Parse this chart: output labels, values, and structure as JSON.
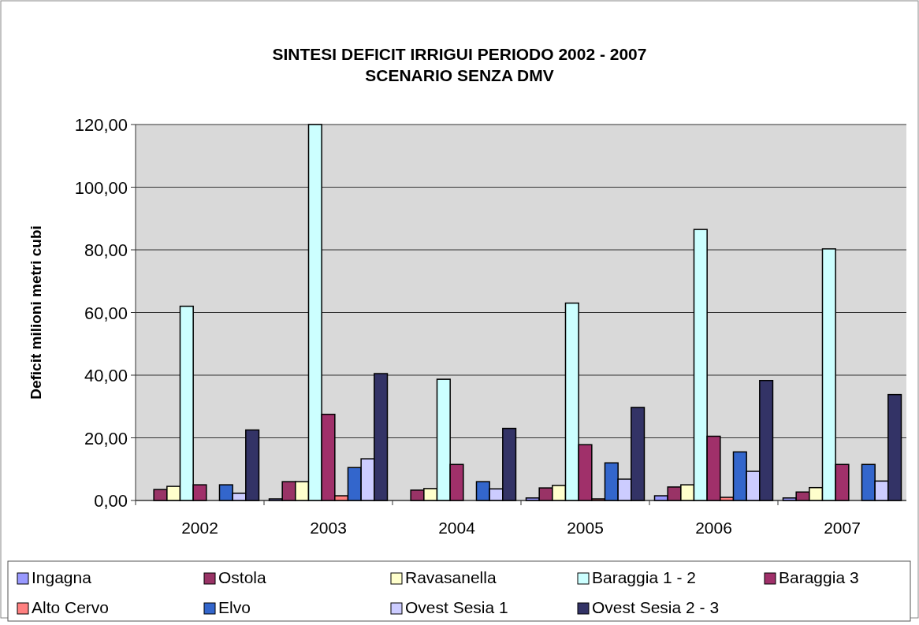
{
  "chart_data": {
    "type": "bar",
    "title": "SINTESI DEFICIT IRRIGUI PERIODO 2002 - 2007",
    "subtitle": "SCENARIO SENZA DMV",
    "ylabel": "Deficit milioni metri cubi",
    "categories": [
      "2002",
      "2003",
      "2004",
      "2005",
      "2006",
      "2007"
    ],
    "series": [
      {
        "name": "Ingagna",
        "color": "#9999ff",
        "values": [
          0,
          0.5,
          0,
          0.8,
          1.5,
          0.8
        ]
      },
      {
        "name": "Ostola",
        "color": "#993366",
        "values": [
          3.5,
          6,
          3.3,
          4,
          4.3,
          2.7
        ]
      },
      {
        "name": "Ravasanella",
        "color": "#ffffcc",
        "values": [
          4.5,
          6,
          3.8,
          4.8,
          5,
          4.1
        ]
      },
      {
        "name": "Baraggia 1 - 2",
        "color": "#ccffff",
        "values": [
          62,
          120,
          38.7,
          63,
          86.5,
          80.3
        ]
      },
      {
        "name": "Baraggia 3",
        "color": "#a0306a",
        "values": [
          5,
          27.5,
          11.5,
          17.8,
          20.5,
          11.5
        ]
      },
      {
        "name": "Alto Cervo",
        "color": "#ff8080",
        "values": [
          0,
          1.5,
          0,
          0.5,
          1,
          0
        ]
      },
      {
        "name": "Elvo",
        "color": "#3366cc",
        "values": [
          5,
          10.5,
          6,
          12,
          15.5,
          11.5
        ]
      },
      {
        "name": "Ovest Sesia 1",
        "color": "#ccccff",
        "values": [
          2.3,
          13.3,
          3.7,
          6.8,
          9.3,
          6.2
        ]
      },
      {
        "name": "Ovest Sesia 2 - 3",
        "color": "#333366",
        "values": [
          22.5,
          40.5,
          23,
          29.7,
          38.3,
          33.8
        ]
      }
    ],
    "ylim": [
      0,
      120
    ],
    "yticks": [
      {
        "value": 0,
        "label": "0,00"
      },
      {
        "value": 20,
        "label": "20,00"
      },
      {
        "value": 40,
        "label": "40,00"
      },
      {
        "value": 60,
        "label": "60,00"
      },
      {
        "value": 80,
        "label": "80,00"
      },
      {
        "value": 100,
        "label": "100,00"
      },
      {
        "value": 120,
        "label": "120,00"
      }
    ],
    "grid": "y",
    "legend": "bottom"
  }
}
